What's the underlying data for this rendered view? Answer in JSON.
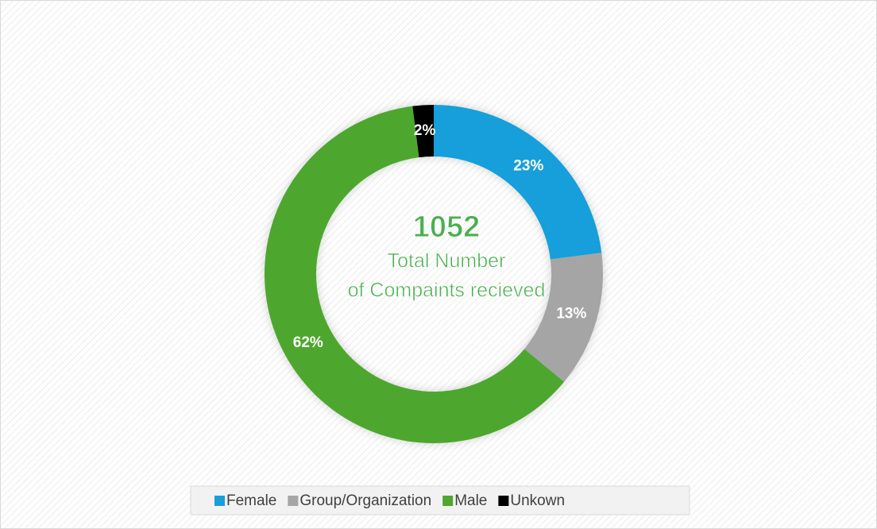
{
  "chart_data": {
    "type": "donut",
    "categories": [
      "Female",
      "Group/Organization",
      "Male",
      "Unkown"
    ],
    "values": [
      23,
      13,
      62,
      2
    ],
    "value_labels": [
      "23%",
      "13%",
      "62%",
      "2%"
    ],
    "colors": [
      "#179fda",
      "#a5a5a5",
      "#4ea72e",
      "#000000"
    ],
    "center_value": 1052,
    "center_label": [
      "Total Number",
      "of Compaints recieved"
    ],
    "legend": "bottom"
  }
}
